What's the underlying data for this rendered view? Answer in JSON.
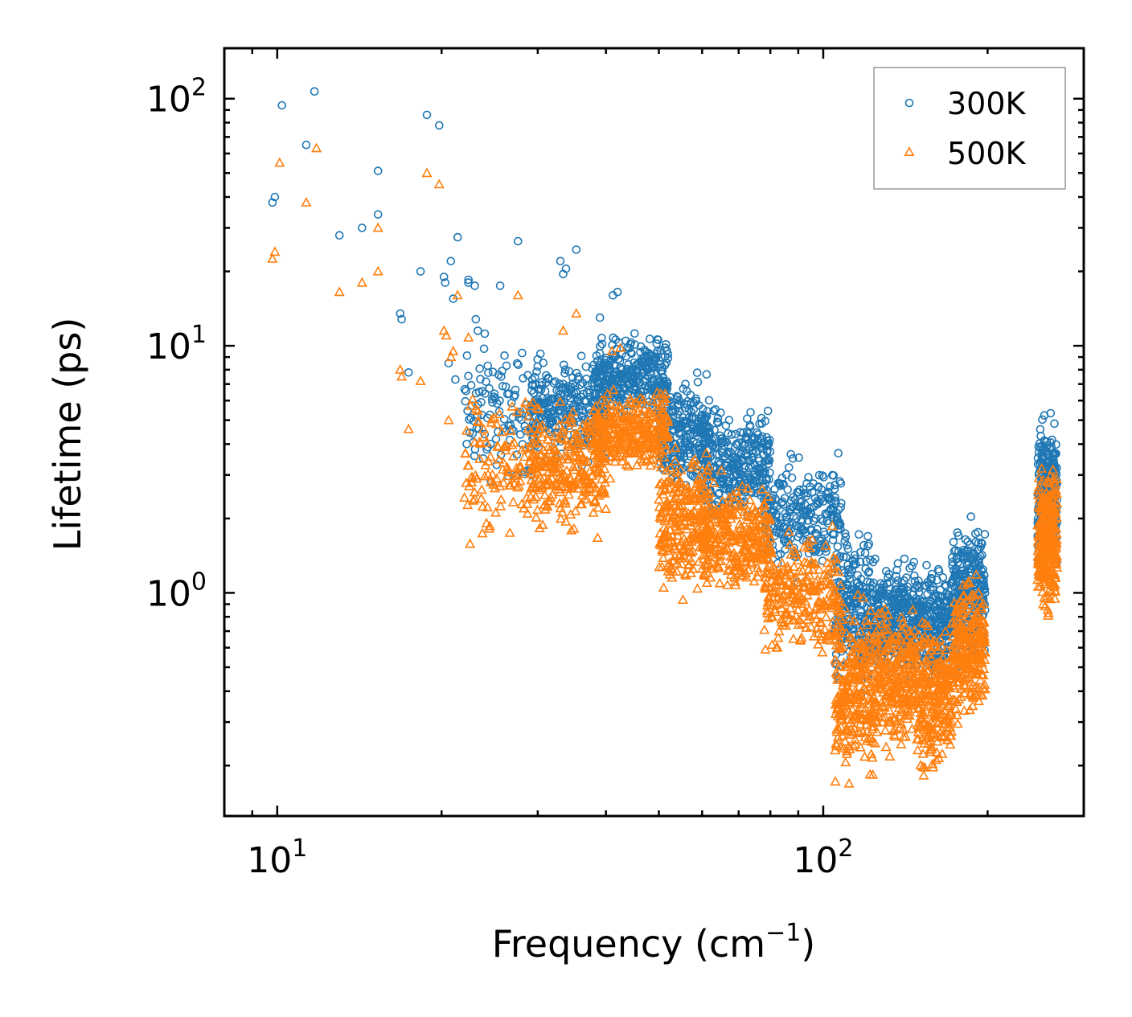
{
  "chart_data": {
    "type": "scatter",
    "title": "",
    "xlabel": "Frequency (cm",
    "xlabel_sup": "−1",
    "xlabel_close": ")",
    "ylabel": "Lifetime (ps)",
    "xscale": "log",
    "yscale": "log",
    "xlim": [
      8.0,
      300.0
    ],
    "ylim": [
      0.125,
      160
    ],
    "x_ticks": [
      {
        "value": 10,
        "base": "10",
        "exp": "1"
      },
      {
        "value": 100,
        "base": "10",
        "exp": "2"
      }
    ],
    "y_ticks": [
      {
        "value": 1,
        "base": "10",
        "exp": "0"
      },
      {
        "value": 10,
        "base": "10",
        "exp": "1"
      },
      {
        "value": 100,
        "base": "10",
        "exp": "2"
      }
    ],
    "legend_position": "upper right",
    "series": [
      {
        "name": "300K",
        "marker": "circle",
        "color": "#1f77b4",
        "points": [
          [
            9.8,
            38
          ],
          [
            9.9,
            40
          ],
          [
            10.2,
            94
          ],
          [
            11.3,
            65
          ],
          [
            11.7,
            107
          ],
          [
            13.0,
            28
          ],
          [
            14.3,
            30
          ],
          [
            15.3,
            51
          ],
          [
            15.3,
            34
          ],
          [
            16.8,
            13.5
          ],
          [
            16.9,
            12.8
          ],
          [
            17.4,
            7.8
          ],
          [
            18.3,
            20
          ],
          [
            18.8,
            86
          ],
          [
            19.8,
            78
          ],
          [
            20.2,
            19
          ],
          [
            20.3,
            18
          ],
          [
            20.6,
            8.5
          ],
          [
            20.8,
            22
          ],
          [
            21.0,
            15.5
          ],
          [
            21.2,
            7.3
          ],
          [
            21.4,
            27.5
          ],
          [
            22.4,
            18
          ],
          [
            22.4,
            18.5
          ],
          [
            23.0,
            17.5
          ],
          [
            23.1,
            12.8
          ],
          [
            23.3,
            11.5
          ],
          [
            24.0,
            11.2
          ],
          [
            24.3,
            8.3
          ],
          [
            25.6,
            17.5
          ],
          [
            27.6,
            26.5
          ],
          [
            33.4,
            19.5
          ],
          [
            33.8,
            20.5
          ],
          [
            35.3,
            24.5
          ],
          [
            33.0,
            22
          ],
          [
            41.2,
            16
          ],
          [
            42.0,
            16.5
          ],
          [
            39.0,
            13
          ]
        ],
        "bands": [
          {
            "x0": 22.0,
            "x1": 30.0,
            "ylo": 2.3,
            "yhi": 12.0,
            "n": 110
          },
          {
            "x0": 29.0,
            "x1": 40.0,
            "ylo": 3.0,
            "yhi": 10.5,
            "n": 260
          },
          {
            "x0": 38.0,
            "x1": 52.0,
            "ylo": 4.5,
            "yhi": 12.0,
            "n": 320
          },
          {
            "x0": 50.0,
            "x1": 62.0,
            "ylo": 2.2,
            "yhi": 8.5,
            "n": 240
          },
          {
            "x0": 60.0,
            "x1": 80.0,
            "ylo": 1.7,
            "yhi": 6.5,
            "n": 300
          },
          {
            "x0": 78.0,
            "x1": 108.0,
            "ylo": 1.0,
            "yhi": 4.2,
            "n": 240
          },
          {
            "x0": 105.0,
            "x1": 125.0,
            "ylo": 0.35,
            "yhi": 2.2,
            "n": 260
          },
          {
            "x0": 125.0,
            "x1": 148.0,
            "ylo": 0.4,
            "yhi": 1.5,
            "n": 260
          },
          {
            "x0": 148.0,
            "x1": 172.0,
            "ylo": 0.38,
            "yhi": 1.5,
            "n": 240
          },
          {
            "x0": 172.0,
            "x1": 198.0,
            "ylo": 0.42,
            "yhi": 2.4,
            "n": 260
          },
          {
            "x0": 247.0,
            "x1": 268.0,
            "ylo": 1.0,
            "yhi": 6.0,
            "n": 300
          }
        ]
      },
      {
        "name": "500K",
        "marker": "triangle",
        "color": "#ff7f0e",
        "points": [
          [
            9.8,
            22.5
          ],
          [
            9.9,
            24
          ],
          [
            10.1,
            55
          ],
          [
            11.3,
            38
          ],
          [
            11.8,
            63
          ],
          [
            13.0,
            16.5
          ],
          [
            14.3,
            18
          ],
          [
            15.3,
            30
          ],
          [
            15.3,
            20
          ],
          [
            16.8,
            8.0
          ],
          [
            16.9,
            7.5
          ],
          [
            17.4,
            4.6
          ],
          [
            18.3,
            7.2
          ],
          [
            18.8,
            50
          ],
          [
            19.8,
            45
          ],
          [
            20.2,
            11.5
          ],
          [
            20.4,
            11
          ],
          [
            20.6,
            5.0
          ],
          [
            20.8,
            9.0
          ],
          [
            21.0,
            9.5
          ],
          [
            21.4,
            16
          ],
          [
            22.4,
            10.8
          ],
          [
            22.7,
            2.8
          ],
          [
            23.0,
            2.4
          ],
          [
            27.6,
            16
          ],
          [
            33.4,
            11.5
          ],
          [
            35.3,
            13.5
          ],
          [
            41.0,
            9.5
          ],
          [
            42.5,
            9.8
          ]
        ],
        "bands": [
          {
            "x0": 22.0,
            "x1": 30.0,
            "ylo": 1.4,
            "yhi": 8.0,
            "n": 120
          },
          {
            "x0": 29.0,
            "x1": 40.0,
            "ylo": 1.6,
            "yhi": 6.5,
            "n": 280
          },
          {
            "x0": 38.0,
            "x1": 52.0,
            "ylo": 2.8,
            "yhi": 7.0,
            "n": 320
          },
          {
            "x0": 50.0,
            "x1": 62.0,
            "ylo": 0.8,
            "yhi": 5.0,
            "n": 260
          },
          {
            "x0": 60.0,
            "x1": 80.0,
            "ylo": 0.9,
            "yhi": 3.2,
            "n": 300
          },
          {
            "x0": 78.0,
            "x1": 108.0,
            "ylo": 0.5,
            "yhi": 2.0,
            "n": 250
          },
          {
            "x0": 105.0,
            "x1": 125.0,
            "ylo": 0.14,
            "yhi": 1.1,
            "n": 280
          },
          {
            "x0": 125.0,
            "x1": 148.0,
            "ylo": 0.2,
            "yhi": 1.0,
            "n": 260
          },
          {
            "x0": 148.0,
            "x1": 172.0,
            "ylo": 0.15,
            "yhi": 0.95,
            "n": 260
          },
          {
            "x0": 172.0,
            "x1": 198.0,
            "ylo": 0.28,
            "yhi": 1.3,
            "n": 260
          },
          {
            "x0": 247.0,
            "x1": 268.0,
            "ylo": 0.68,
            "yhi": 4.0,
            "n": 300
          }
        ]
      }
    ]
  }
}
